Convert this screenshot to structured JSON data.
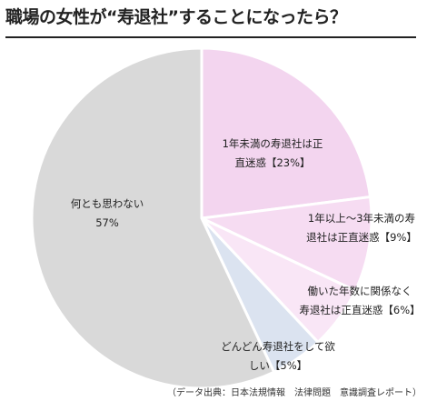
{
  "title": "職場の女性が“寿退社”することになったら？",
  "source": "（データ出典：日本法規情報　法律問題　意識調査レポート）",
  "chart_data": {
    "type": "pie",
    "start": "top",
    "direction": "clockwise",
    "slices": [
      {
        "label_lines": [
          "1年未満の寿退社は正",
          "直迷惑【23%】"
        ],
        "value": 23,
        "color": "#f3d5ef"
      },
      {
        "label_lines": [
          "1年以上～3年未満の寿",
          "退社は正直迷惑【9%】"
        ],
        "value": 9,
        "color": "#f6dcf2"
      },
      {
        "label_lines": [
          "働いた年数に関係なく",
          "寿退社は正直迷惑【6%】"
        ],
        "value": 6,
        "color": "#f9e6f6"
      },
      {
        "label_lines": [
          "どんどん寿退社をして欲",
          "しい【5%】"
        ],
        "value": 5,
        "color": "#dbe3f0"
      },
      {
        "label_lines": [
          "何とも思わない",
          "57%"
        ],
        "value": 57,
        "color": "#d9d9d9"
      }
    ]
  }
}
